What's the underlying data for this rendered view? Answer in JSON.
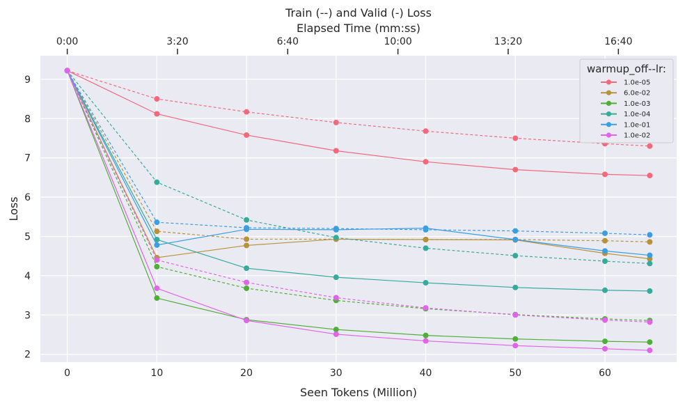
{
  "chart_data": {
    "type": "line",
    "title": "Train (--) and Valid (-) Loss",
    "top_axis_label": "Elapsed Time (mm:ss)",
    "xlabel": "Seen Tokens (Million)",
    "ylabel": "Loss",
    "xlim": [
      -3,
      68
    ],
    "ylim": [
      1.8,
      9.6
    ],
    "x_ticks": [
      0,
      10,
      20,
      30,
      40,
      50,
      60
    ],
    "y_ticks": [
      2,
      3,
      4,
      5,
      6,
      7,
      8,
      9
    ],
    "top_ticks": [
      {
        "x": 0,
        "label": "0:00"
      },
      {
        "x": 12.3,
        "label": "3:20"
      },
      {
        "x": 24.6,
        "label": "6:40"
      },
      {
        "x": 36.9,
        "label": "10:00"
      },
      {
        "x": 49.2,
        "label": "13:20"
      },
      {
        "x": 61.5,
        "label": "16:40"
      }
    ],
    "grid": true,
    "legend_title": "warmup_off--lr:",
    "legend_position": "top-right",
    "x": [
      0,
      10,
      20,
      30,
      40,
      50,
      60,
      65
    ],
    "series": [
      {
        "name": "1.0e-05",
        "color": "#f2697e",
        "train": [
          9.22,
          8.5,
          8.17,
          7.9,
          7.68,
          7.5,
          7.36,
          7.3
        ],
        "valid": [
          9.22,
          8.12,
          7.58,
          7.18,
          6.9,
          6.7,
          6.58,
          6.55
        ]
      },
      {
        "name": "6.0e-02",
        "color": "#b8923a",
        "train": [
          9.22,
          5.13,
          4.93,
          4.93,
          4.92,
          4.92,
          4.89,
          4.86
        ],
        "valid": [
          9.22,
          4.46,
          4.77,
          4.93,
          4.92,
          4.91,
          4.57,
          4.43
        ]
      },
      {
        "name": "1.0e-03",
        "color": "#4fae37",
        "train": [
          9.22,
          4.23,
          3.68,
          3.37,
          3.16,
          3.01,
          2.9,
          2.86
        ],
        "valid": [
          9.22,
          3.43,
          2.88,
          2.63,
          2.48,
          2.39,
          2.33,
          2.31
        ]
      },
      {
        "name": "1.0e-04",
        "color": "#36ab9b",
        "train": [
          9.22,
          6.38,
          5.42,
          4.97,
          4.7,
          4.51,
          4.37,
          4.31
        ],
        "valid": [
          9.22,
          4.92,
          4.19,
          3.96,
          3.82,
          3.7,
          3.63,
          3.61
        ]
      },
      {
        "name": "1.0e-01",
        "color": "#3a9ee0",
        "train": [
          9.22,
          5.36,
          5.22,
          5.2,
          5.17,
          5.14,
          5.08,
          5.04
        ],
        "valid": [
          9.22,
          4.78,
          5.18,
          5.17,
          5.21,
          4.92,
          4.63,
          4.52
        ]
      },
      {
        "name": "1.0e-02",
        "color": "#e063e8",
        "train": [
          9.22,
          4.4,
          3.83,
          3.44,
          3.18,
          3.0,
          2.87,
          2.82
        ],
        "valid": [
          9.22,
          3.68,
          2.86,
          2.51,
          2.34,
          2.22,
          2.14,
          2.1
        ]
      }
    ]
  }
}
